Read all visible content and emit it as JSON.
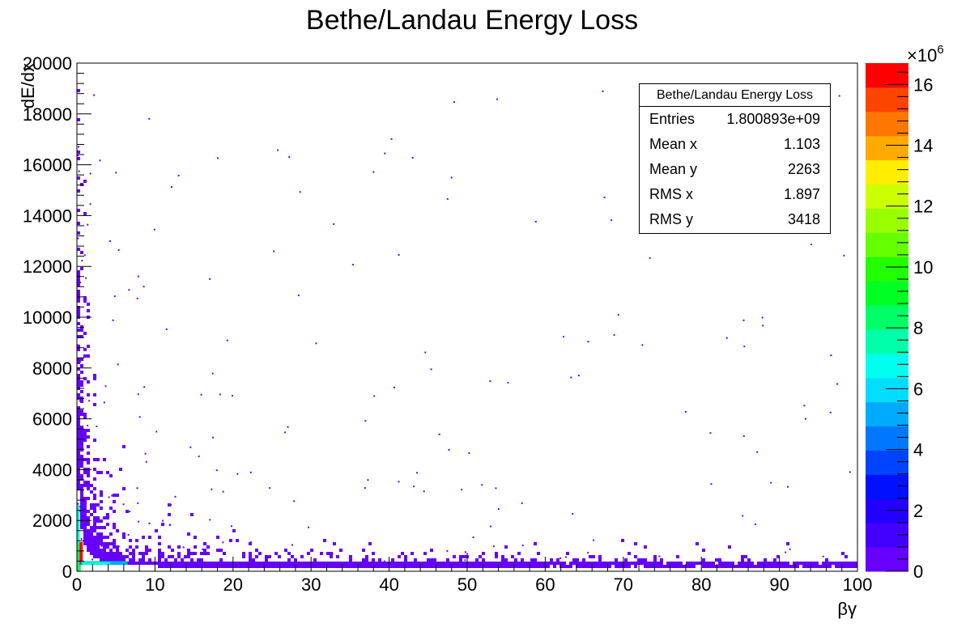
{
  "chart_data": {
    "type": "heatmap",
    "title": "Bethe/Landau Energy Loss",
    "xlabel": "βγ",
    "ylabel": "dE/dx",
    "xlim": [
      0,
      100
    ],
    "ylim": [
      0,
      20000
    ],
    "x_ticks": [
      "0",
      "10",
      "20",
      "30",
      "40",
      "50",
      "60",
      "70",
      "80",
      "90",
      "100"
    ],
    "y_ticks": [
      "0",
      "2000",
      "4000",
      "6000",
      "8000",
      "10000",
      "12000",
      "14000",
      "16000",
      "18000",
      "20000"
    ],
    "colorbar": {
      "range": [
        0,
        16.7
      ],
      "ticks": [
        "0",
        "2",
        "4",
        "6",
        "8",
        "10",
        "12",
        "14",
        "16"
      ],
      "multiplier": "×10",
      "exponent": "6",
      "palette": [
        "#6600ff",
        "#4400ff",
        "#2200ff",
        "#0011ff",
        "#0044ff",
        "#0077ff",
        "#00aaff",
        "#00ddff",
        "#00ffee",
        "#00ffaa",
        "#00ff66",
        "#00ff22",
        "#22ff00",
        "#66ff00",
        "#99ff00",
        "#ccff00",
        "#ffee00",
        "#ffaa00",
        "#ff7700",
        "#ff4400",
        "#ff0000"
      ]
    },
    "band": {
      "description_values_x": [
        0.5,
        1,
        2,
        3,
        5,
        10,
        20,
        40,
        100
      ],
      "dense_dedx": [
        1500,
        700,
        450,
        380,
        340,
        320,
        310,
        300,
        300
      ]
    },
    "stats_box": {
      "title": "Bethe/Landau Energy Loss",
      "rows": [
        {
          "label": "Entries",
          "value": "1.800893e+09"
        },
        {
          "label": "Mean x",
          "value": "1.103"
        },
        {
          "label": "Mean y",
          "value": "2263"
        },
        {
          "label": "RMS x",
          "value": "1.897"
        },
        {
          "label": "RMS y",
          "value": "3418"
        }
      ]
    }
  }
}
